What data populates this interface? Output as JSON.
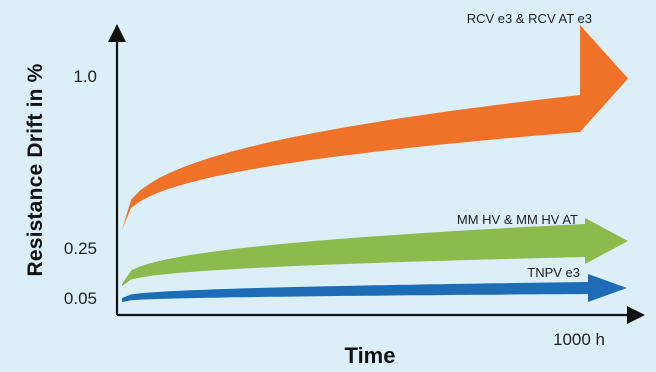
{
  "chart_data": {
    "type": "area",
    "title": "",
    "xlabel": "Time",
    "ylabel": "Resistance Drift in %",
    "x_axis": {
      "range": [
        0,
        1000
      ],
      "unit": "h",
      "tick_labels": [
        "1000 h"
      ]
    },
    "y_axis": {
      "tick_values": [
        0.05,
        0.25,
        1.0
      ],
      "tick_labels": [
        "0.05",
        "0.25",
        "1.0"
      ]
    },
    "grid": false,
    "legend": "none",
    "series": [
      {
        "name": "RCV e3 & RCV AT e3",
        "color": "#f07228",
        "end_value": 1.0,
        "shape": "arrow-band"
      },
      {
        "name": "MM HV & MM HV AT",
        "color": "#8dba4d",
        "end_value": 0.25,
        "shape": "arrow-band"
      },
      {
        "name": "TNPV e3",
        "color": "#1c6db5",
        "end_value": 0.05,
        "shape": "arrow-band"
      }
    ]
  },
  "colors": {
    "background": "#dceff9",
    "axis": "#111111"
  }
}
